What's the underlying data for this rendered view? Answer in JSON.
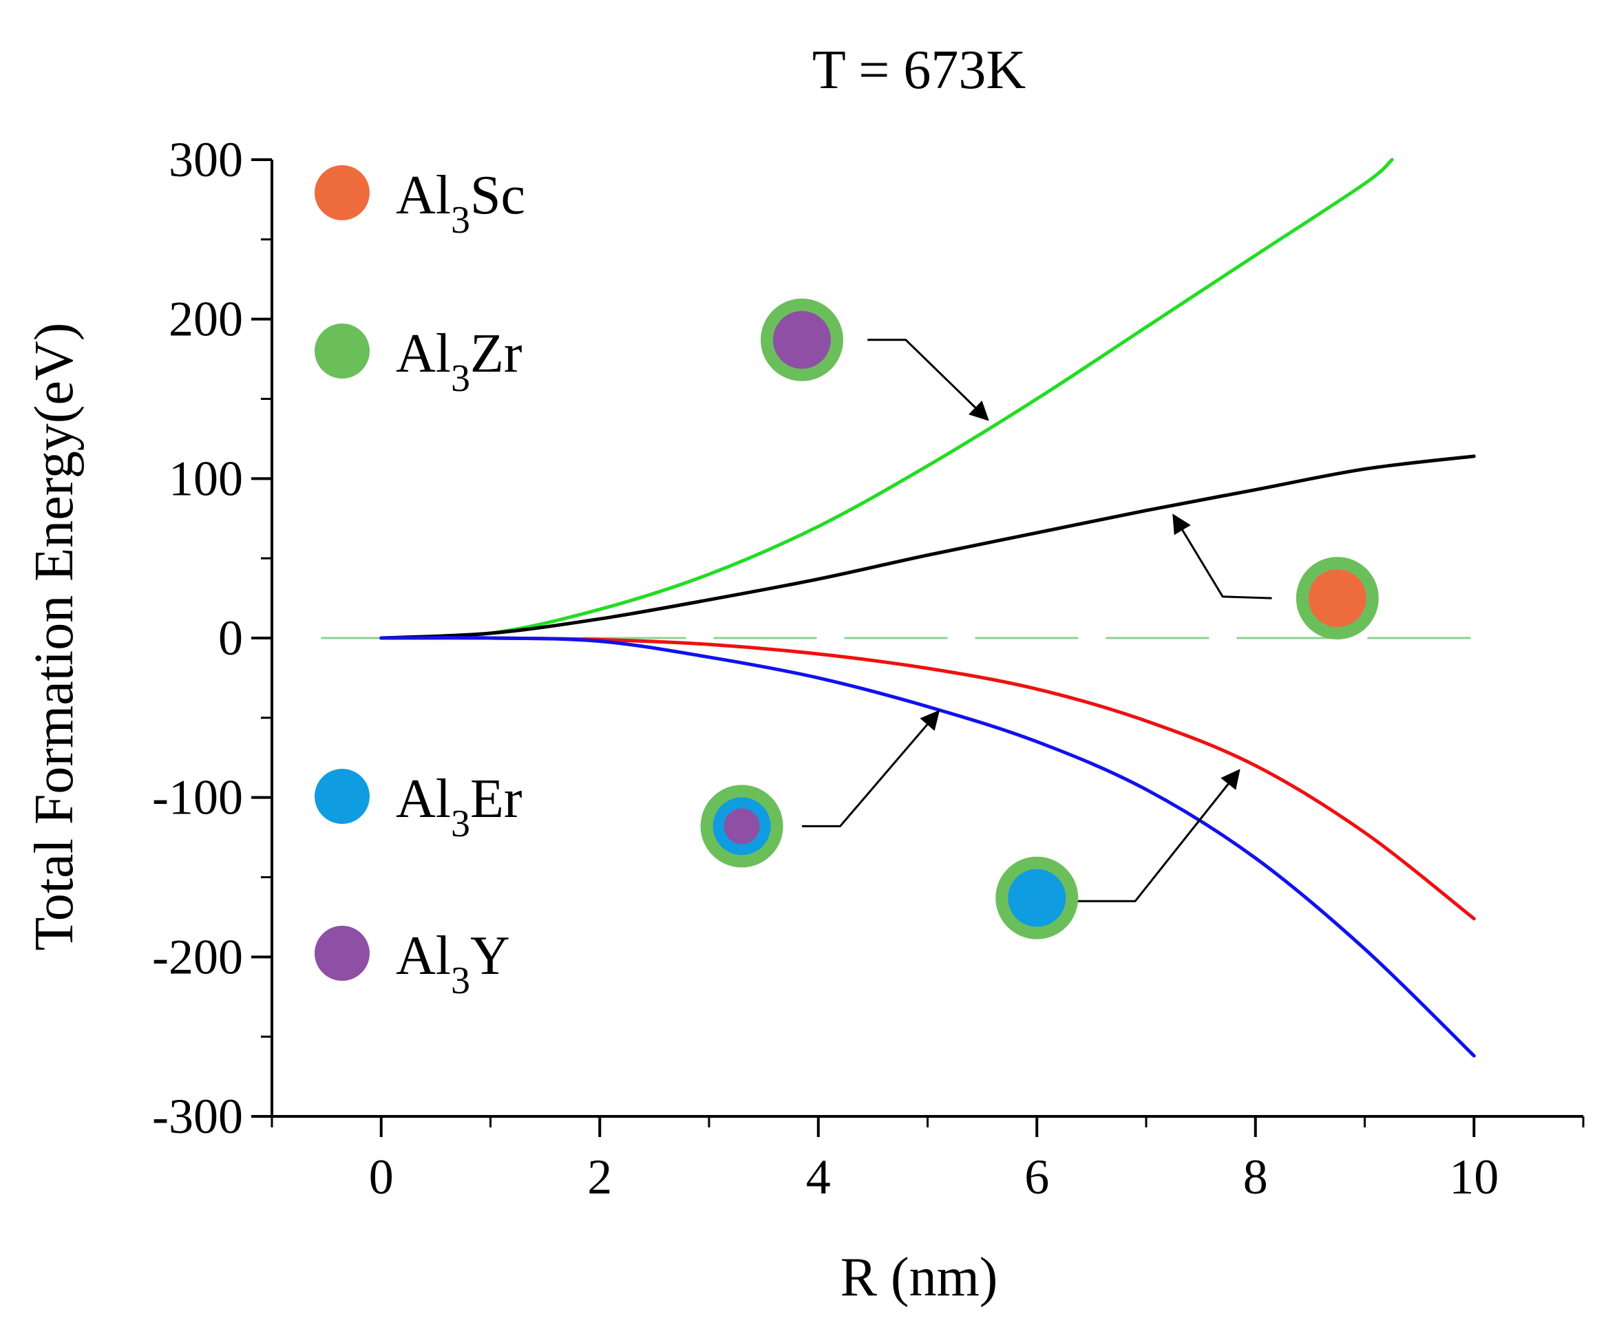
{
  "chart_data": {
    "type": "line",
    "title": "T = 673K",
    "xlabel": "R (nm)",
    "ylabel": "Total Formation Energy(eV)",
    "xlim": [
      -1,
      11
    ],
    "ylim": [
      -300,
      300
    ],
    "xticks": [
      0,
      2,
      4,
      6,
      8,
      10
    ],
    "yticks": [
      300,
      200,
      100,
      0,
      -100,
      -200,
      -300
    ],
    "xtick_labels": [
      "0",
      "2",
      "4",
      "6",
      "8",
      "10"
    ],
    "ytick_labels": [
      "300",
      "200",
      "100",
      "0",
      "-100",
      "-200",
      "-300"
    ],
    "grid": false,
    "zero_reference_line": {
      "y": 0,
      "x_range": [
        -0.55,
        10
      ],
      "style": "dashed",
      "color": "#8fd18f"
    },
    "legend": {
      "placement": "left",
      "entries": [
        {
          "base": "Al",
          "sub": "3",
          "rest": "Sc",
          "color": "#ee6b3e"
        },
        {
          "base": "Al",
          "sub": "3",
          "rest": "Zr",
          "color": "#6bbf5b"
        },
        {
          "base": "Al",
          "sub": "3",
          "rest": "Er",
          "color": "#109ce0"
        },
        {
          "base": "Al",
          "sub": "3",
          "rest": "Y",
          "color": "#8e4fa5"
        }
      ]
    },
    "series": [
      {
        "color": "#22dd22",
        "x": [
          0,
          1,
          2,
          3,
          4,
          5,
          6,
          7,
          8,
          9,
          9.25
        ],
        "y": [
          0,
          3,
          18,
          40,
          70,
          108,
          150,
          195,
          240,
          285,
          300
        ]
      },
      {
        "color": "#000000",
        "x": [
          0,
          1,
          2,
          3,
          4,
          5,
          6,
          7,
          8,
          9,
          10
        ],
        "y": [
          0,
          3,
          12,
          24,
          37,
          52,
          66,
          80,
          93,
          106,
          114
        ]
      },
      {
        "color": "#ee1111",
        "x": [
          0,
          1,
          2,
          3,
          4,
          5,
          6,
          7,
          8,
          9,
          10
        ],
        "y": [
          0,
          0,
          -1,
          -4,
          -10,
          -19,
          -32,
          -52,
          -80,
          -122,
          -176
        ]
      },
      {
        "color": "#1111ee",
        "x": [
          0,
          1,
          2,
          3,
          4,
          5,
          6,
          7,
          8,
          9,
          10
        ],
        "y": [
          0,
          0,
          -2,
          -12,
          -25,
          -43,
          -65,
          -95,
          -138,
          -195,
          -262
        ]
      }
    ],
    "annotations": [
      {
        "marker_at": [
          3.85,
          187
        ],
        "shell_color": "#6bbf5b",
        "core_color": "#8e4fa5",
        "inner_color": null,
        "path": [
          [
            4.45,
            187
          ],
          [
            4.8,
            187
          ],
          [
            5.55,
            137
          ]
        ],
        "arrow_end": [
          5.55,
          137
        ]
      },
      {
        "marker_at": [
          8.75,
          25
        ],
        "shell_color": "#6bbf5b",
        "core_color": "#ee6b3e",
        "inner_color": null,
        "path": [
          [
            8.15,
            25
          ],
          [
            7.7,
            26
          ],
          [
            7.25,
            77
          ]
        ],
        "arrow_end": [
          7.25,
          77
        ]
      },
      {
        "marker_at": [
          3.3,
          -118
        ],
        "shell_color": "#6bbf5b",
        "core_color": "#109ce0",
        "inner_color": "#8e4fa5",
        "path": [
          [
            3.85,
            -118
          ],
          [
            4.2,
            -118
          ],
          [
            5.1,
            -46
          ]
        ],
        "arrow_end": [
          5.1,
          -46
        ]
      },
      {
        "marker_at": [
          6.0,
          -163
        ],
        "shell_color": "#6bbf5b",
        "core_color": "#109ce0",
        "inner_color": null,
        "path": [
          [
            6.35,
            -165
          ],
          [
            6.9,
            -165
          ],
          [
            7.85,
            -83
          ]
        ],
        "arrow_end": [
          7.85,
          -83
        ]
      }
    ]
  }
}
